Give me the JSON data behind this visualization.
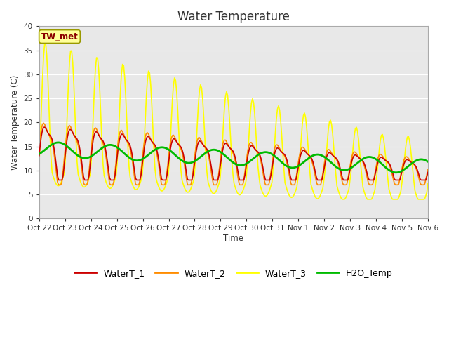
{
  "title": "Water Temperature",
  "ylabel": "Water Temperature (C)",
  "xlabel": "Time",
  "annotation": "TW_met",
  "annotation_color": "#8B0000",
  "annotation_bg": "#FFFF99",
  "ylim": [
    0,
    40
  ],
  "yticks": [
    0,
    5,
    10,
    15,
    20,
    25,
    30,
    35,
    40
  ],
  "xtick_labels": [
    "Oct 22",
    "Oct 23",
    "Oct 24",
    "Oct 25",
    "Oct 26",
    "Oct 27",
    "Oct 28",
    "Oct 29",
    "Oct 30",
    "Oct 31",
    "Nov 1",
    "Nov 2",
    "Nov 3",
    "Nov 4",
    "Nov 5",
    "Nov 6"
  ],
  "background_color": "#e8e8e8",
  "fig_color": "#ffffff",
  "grid_color": "#ffffff",
  "series": {
    "WaterT_1": {
      "color": "#cc0000",
      "linewidth": 1.2
    },
    "WaterT_2": {
      "color": "#ff8c00",
      "linewidth": 1.2
    },
    "WaterT_3": {
      "color": "#ffff00",
      "linewidth": 1.2
    },
    "H2O_Temp": {
      "color": "#00bb00",
      "linewidth": 2.0
    }
  },
  "n_days": 15,
  "n_per_day": 24
}
